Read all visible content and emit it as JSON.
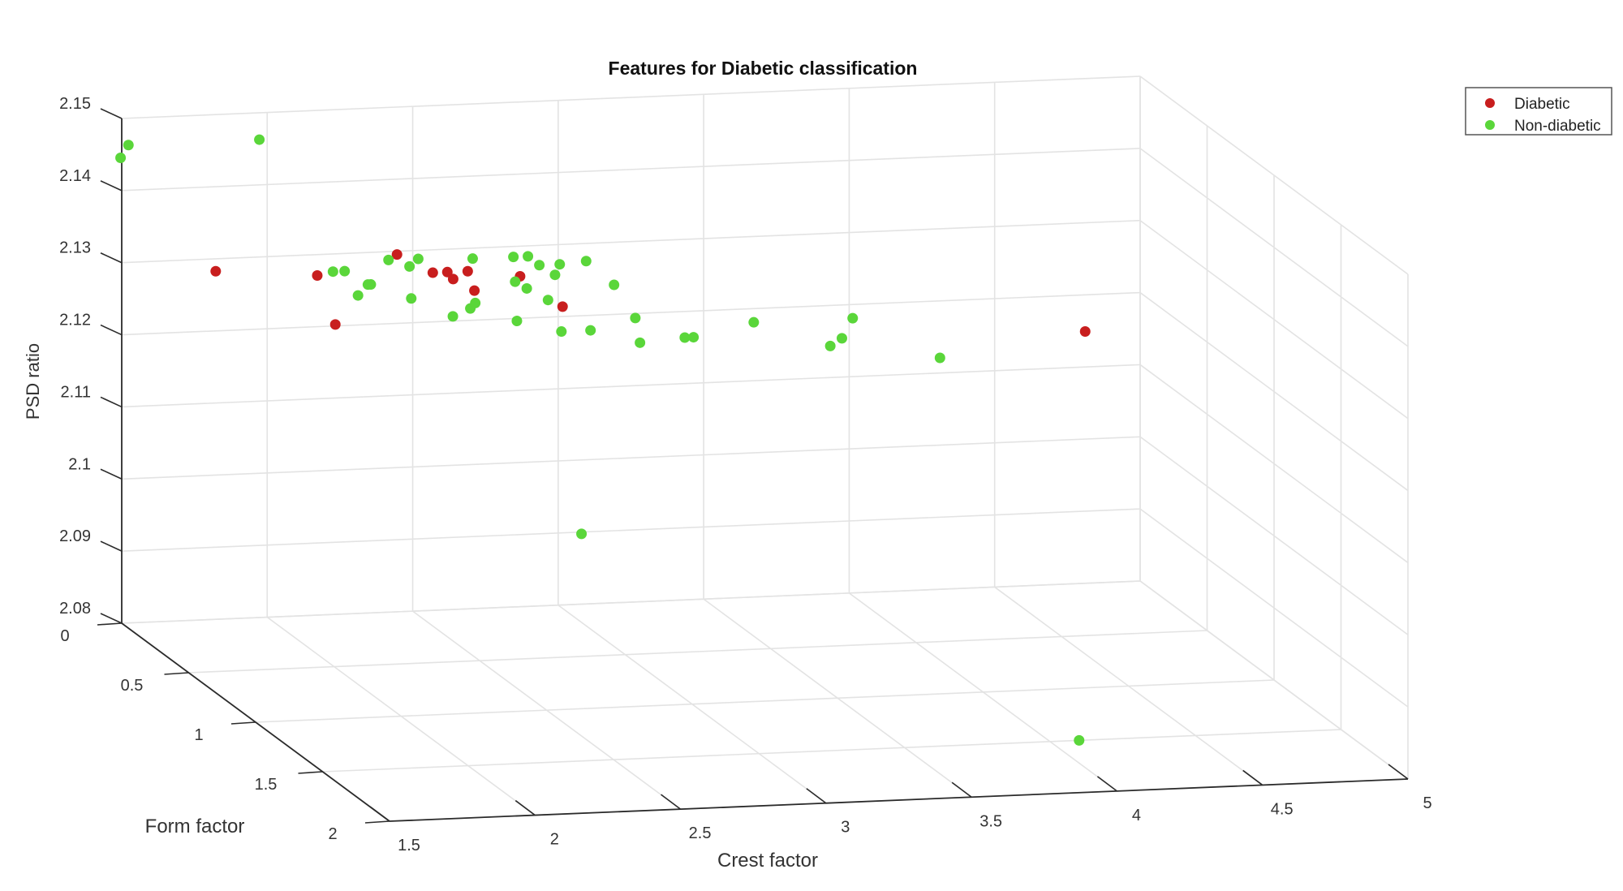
{
  "chart_data": {
    "type": "scatter",
    "projection": "3d",
    "title": "Features for Diabetic classification",
    "xlabel": "Crest factor",
    "ylabel": "Form factor",
    "zlabel": "PSD ratio",
    "xlim": [
      1.5,
      5
    ],
    "ylim": [
      0,
      2
    ],
    "zlim": [
      2.08,
      2.15
    ],
    "x_ticks": [
      "1.5",
      "2",
      "2.5",
      "3",
      "3.5",
      "4",
      "4.5",
      "5"
    ],
    "y_ticks": [
      "0",
      "0.5",
      "1",
      "1.5",
      "2"
    ],
    "z_ticks": [
      "2.08",
      "2.09",
      "2.1",
      "2.11",
      "2.12",
      "2.13",
      "2.14",
      "2.15"
    ],
    "grid": true,
    "legend_position": "top-right",
    "series": [
      {
        "name": "Diabetic",
        "color": "#c81e1e",
        "points": [
          [
            1.8,
            0.05,
            2.129
          ],
          [
            2.08,
            0.2,
            2.13
          ],
          [
            2.05,
            0.4,
            2.126
          ],
          [
            2.4,
            0.1,
            2.131
          ],
          [
            2.5,
            0.15,
            2.129
          ],
          [
            2.55,
            0.15,
            2.129
          ],
          [
            2.57,
            0.15,
            2.128
          ],
          [
            2.62,
            0.15,
            2.129
          ],
          [
            2.62,
            0.2,
            2.127
          ],
          [
            2.8,
            0.15,
            2.128
          ],
          [
            2.9,
            0.25,
            2.125
          ],
          [
            4.65,
            0.35,
            2.12
          ]
        ]
      },
      {
        "name": "Non-diabetic",
        "color": "#5ad63a",
        "points": [
          [
            1.45,
            0.1,
            2.146
          ],
          [
            1.5,
            0.05,
            2.147
          ],
          [
            1.95,
            0.05,
            2.147
          ],
          [
            2.18,
            0.1,
            2.129
          ],
          [
            2.22,
            0.1,
            2.129
          ],
          [
            2.22,
            0.2,
            2.127
          ],
          [
            2.3,
            0.1,
            2.127
          ],
          [
            2.31,
            0.1,
            2.127
          ],
          [
            2.38,
            0.08,
            2.13
          ],
          [
            2.38,
            0.25,
            2.127
          ],
          [
            2.42,
            0.15,
            2.13
          ],
          [
            2.45,
            0.15,
            2.131
          ],
          [
            2.5,
            0.3,
            2.125
          ],
          [
            2.56,
            0.3,
            2.126
          ],
          [
            2.6,
            0.25,
            2.126
          ],
          [
            2.66,
            0.1,
            2.13
          ],
          [
            2.72,
            0.3,
            2.124
          ],
          [
            2.76,
            0.2,
            2.128
          ],
          [
            2.8,
            0.1,
            2.13
          ],
          [
            2.8,
            0.2,
            2.127
          ],
          [
            2.85,
            0.25,
            2.126
          ],
          [
            2.85,
            0.1,
            2.13
          ],
          [
            2.88,
            0.12,
            2.129
          ],
          [
            2.92,
            0.15,
            2.128
          ],
          [
            2.95,
            0.12,
            2.129
          ],
          [
            2.85,
            0.35,
            2.123
          ],
          [
            2.95,
            0.35,
            2.123
          ],
          [
            3.05,
            0.1,
            2.129
          ],
          [
            3.1,
            0.2,
            2.127
          ],
          [
            3.15,
            0.25,
            2.123
          ],
          [
            3.12,
            0.35,
            2.121
          ],
          [
            3.32,
            0.25,
            2.12
          ],
          [
            3.35,
            0.25,
            2.12
          ],
          [
            3.58,
            0.2,
            2.121
          ],
          [
            3.82,
            0.25,
            2.118
          ],
          [
            3.86,
            0.25,
            2.119
          ],
          [
            3.92,
            0.2,
            2.121
          ],
          [
            4.22,
            0.2,
            2.115
          ],
          [
            2.85,
            0.5,
            2.097
          ],
          [
            4.1,
            1.5,
            2.08
          ]
        ]
      }
    ]
  }
}
